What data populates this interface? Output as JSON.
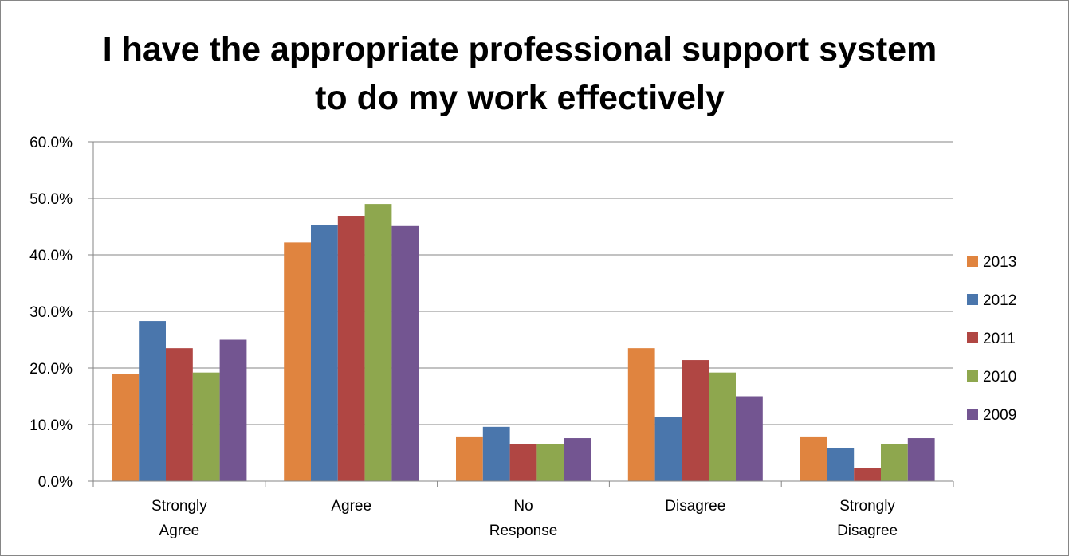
{
  "chart_data": {
    "type": "bar",
    "title_lines": [
      "I have the appropriate professional support system",
      "to do my work effectively"
    ],
    "categories": [
      [
        "Strongly",
        "Agree"
      ],
      [
        "Agree"
      ],
      [
        "No",
        "Response"
      ],
      [
        "Disagree"
      ],
      [
        "Strongly",
        "Disagree"
      ]
    ],
    "series": [
      {
        "name": "2013",
        "color": "#E0843F",
        "values": [
          18.9,
          42.2,
          7.9,
          23.5,
          7.9
        ]
      },
      {
        "name": "2012",
        "color": "#4A76AC",
        "values": [
          28.3,
          45.3,
          9.6,
          11.4,
          5.8
        ]
      },
      {
        "name": "2011",
        "color": "#B04643",
        "values": [
          23.5,
          46.9,
          6.5,
          21.4,
          2.3
        ]
      },
      {
        "name": "2010",
        "color": "#8EA74E",
        "values": [
          19.2,
          49.0,
          6.5,
          19.2,
          6.5
        ]
      },
      {
        "name": "2009",
        "color": "#735591",
        "values": [
          25.0,
          45.1,
          7.6,
          15.0,
          7.6
        ]
      }
    ],
    "yticks": [
      "0.0%",
      "10.0%",
      "20.0%",
      "30.0%",
      "40.0%",
      "50.0%",
      "60.0%"
    ],
    "ylim": [
      0,
      60
    ],
    "grid": true,
    "legend_position": "right"
  }
}
